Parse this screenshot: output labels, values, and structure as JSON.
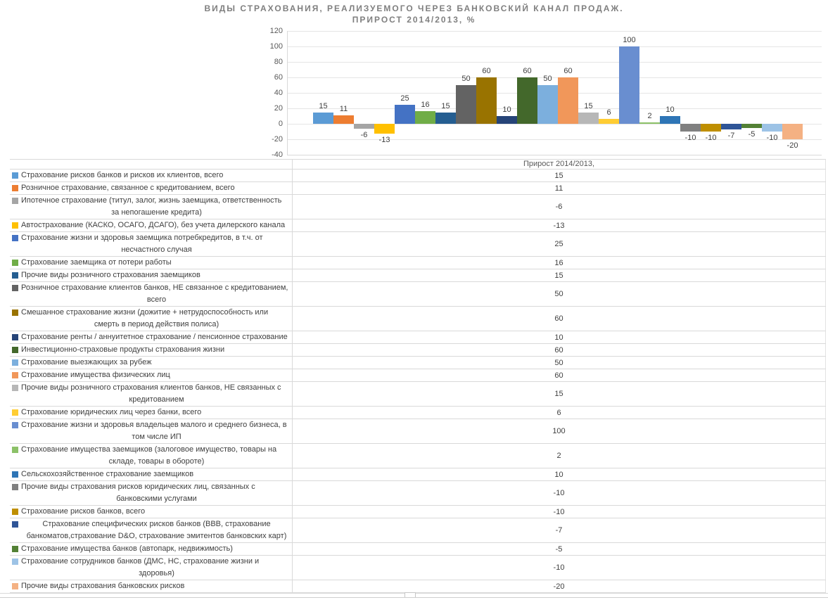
{
  "header": {
    "title_line1": "ВИДЫ СТРАХОВАНИЯ, РЕАЛИЗУЕМОГО ЧЕРЕЗ БАНКОВСКИЙ КАНАЛ ПРОДАЖ.",
    "title_line2": "ПРИРОСТ 2014/2013, %"
  },
  "table": {
    "value_column_header": "Прирост 2014/2013,"
  },
  "chart_data": {
    "type": "bar",
    "title": "ВИДЫ СТРАХОВАНИЯ, РЕАЛИЗУЕМОГО ЧЕРЕЗ БАНКОВСКИЙ КАНАЛ ПРОДАЖ. ПРИРОСТ 2014/2013, %",
    "categories": [
      "Прирост 2014/2013,"
    ],
    "ylabel": "",
    "xlabel": "",
    "ylim": [
      -40,
      120
    ],
    "y_ticks": [
      120,
      100,
      80,
      60,
      40,
      20,
      0,
      -20,
      -40
    ],
    "grid": true,
    "legend_position": "data-table-below-chart",
    "data_labels": true,
    "series": [
      {
        "name": "Страхование рисков банков и рисков их клиентов, всего",
        "value": 15,
        "color": "#5B9BD5",
        "label_lines": [
          "Страхование рисков банков и рисков их клиентов, всего"
        ]
      },
      {
        "name": "Розничное страхование, связанное с кредитованием, всего",
        "value": 11,
        "color": "#ED7D31",
        "label_lines": [
          "Розничное страхование, связанное с кредитованием, всего"
        ]
      },
      {
        "name": "Ипотечное страхование (титул, залог, жизнь заемщика, ответственность за непогашение кредита)",
        "value": -6,
        "color": "#A5A5A5",
        "label_lines": [
          "Ипотечное страхование (титул, залог, жизнь заемщика, ответственность",
          "за непогашение кредита)"
        ]
      },
      {
        "name": "Автострахование (КАСКО, ОСАГО, ДСАГО), без учета дилерского канала",
        "value": -13,
        "color": "#FFC000",
        "label_lines": [
          "Автострахование (КАСКО, ОСАГО, ДСАГО), без учета дилерского канала"
        ]
      },
      {
        "name": "Страхование жизни и здоровья заемщика потребкредитов, в т.ч. от несчастного случая",
        "value": 25,
        "color": "#4472C4",
        "label_lines": [
          "Страхование жизни и здоровья заемщика потребкредитов, в т.ч. от",
          "несчастного случая"
        ]
      },
      {
        "name": "Страхование заемщика от потери работы",
        "value": 16,
        "color": "#70AD47",
        "label_lines": [
          "Страхование заемщика от потери работы"
        ]
      },
      {
        "name": "Прочие виды розничного страхования заемщиков",
        "value": 15,
        "color": "#255E91",
        "label_lines": [
          "Прочие виды розничного страхования заемщиков"
        ]
      },
      {
        "name": "Розничное страхование клиентов банков, НЕ связанное с кредитованием, всего",
        "value": 50,
        "color": "#636363",
        "label_lines": [
          "Розничное страхование клиентов банков, НЕ связанное с кредитованием,",
          "всего"
        ]
      },
      {
        "name": "Смешанное страхование жизни (дожитие + нетрудоспособность или смерть в период действия полиса)",
        "value": 60,
        "color": "#997300",
        "label_lines": [
          "Смешанное страхование жизни (дожитие + нетрудоспособность или",
          "смерть в период действия полиса)"
        ]
      },
      {
        "name": "Страхование ренты / аннуитетное страхование / пенсионное страхование",
        "value": 10,
        "color": "#264478",
        "label_lines": [
          "Страхование ренты / аннуитетное страхование / пенсионное страхование"
        ]
      },
      {
        "name": "Инвестиционно-страховые продукты страхования жизни",
        "value": 60,
        "color": "#43682B",
        "label_lines": [
          "Инвестиционно-страховые продукты страхования жизни"
        ]
      },
      {
        "name": "Страхование выезжающих за рубеж",
        "value": 50,
        "color": "#7CAFDD",
        "label_lines": [
          "Страхование выезжающих за рубеж"
        ]
      },
      {
        "name": "Страхование имущества физических лиц",
        "value": 60,
        "color": "#F1975A",
        "label_lines": [
          "Страхование имущества физических лиц"
        ]
      },
      {
        "name": "Прочие виды розничного страхования клиентов банков, НЕ связанных с кредитованием",
        "value": 15,
        "color": "#B7B7B7",
        "label_lines": [
          "Прочие виды розничного страхования клиентов банков, НЕ связанных с",
          "кредитованием"
        ]
      },
      {
        "name": "Страхование юридических лиц через банки, всего",
        "value": 6,
        "color": "#FFCD33",
        "label_lines": [
          "Страхование юридических лиц через банки, всего"
        ]
      },
      {
        "name": "Страхование жизни и здоровья владельцев малого и среднего бизнеса, в том числе ИП",
        "value": 100,
        "color": "#698ED0",
        "label_lines": [
          "Страхование жизни и здоровья владельцев малого и среднего бизнеса, в",
          "том числе ИП"
        ]
      },
      {
        "name": "Страхование имущества заемщиков (залоговое имущество, товары на складе, товары в обороте)",
        "value": 2,
        "color": "#8CC168",
        "label_lines": [
          "Страхование имущества заемщиков (залоговое имущество, товары на",
          "складе, товары в обороте)"
        ]
      },
      {
        "name": "Сельскохозяйственное страхование заемщиков",
        "value": 10,
        "color": "#2E75B6",
        "label_lines": [
          "Сельскохозяйственное страхование заемщиков"
        ]
      },
      {
        "name": "Прочие виды страхования рисков юридических лиц, связанных с банковскими услугами",
        "value": -10,
        "color": "#808080",
        "label_lines": [
          "Прочие виды страхования рисков юридических лиц, связанных с",
          "банковскими услугами"
        ]
      },
      {
        "name": "Страхование рисков банков, всего",
        "value": -10,
        "color": "#BF8F00",
        "label_lines": [
          "Страхование рисков банков, всего"
        ]
      },
      {
        "name": "Страхование специфических рисков банков (BBB, страхование банкоматов,страхование D&O, страхование эмитентов банковских карт)",
        "value": -7,
        "color": "#2F5597",
        "center_first": true,
        "label_lines": [
          "Страхование специфических рисков банков (BBB, страхование",
          "банкоматов,страхование D&O, страхование эмитентов банковских карт)"
        ]
      },
      {
        "name": "Страхование имущества банков (автопарк, недвижимость)",
        "value": -5,
        "color": "#538135",
        "label_lines": [
          "Страхование имущества банков (автопарк, недвижимость)"
        ]
      },
      {
        "name": "Страхование сотрудников банков (ДМС, НС, страхование жизни и здоровья)",
        "value": -10,
        "color": "#9DC3E6",
        "label_lines": [
          "Страхование сотрудников банков (ДМС, НС, страхование жизни и",
          "здоровья)"
        ]
      },
      {
        "name": "Прочие виды страхования банковских рисков",
        "value": -20,
        "color": "#F4B183",
        "label_lines": [
          "Прочие виды страхования банковских рисков"
        ]
      }
    ]
  }
}
